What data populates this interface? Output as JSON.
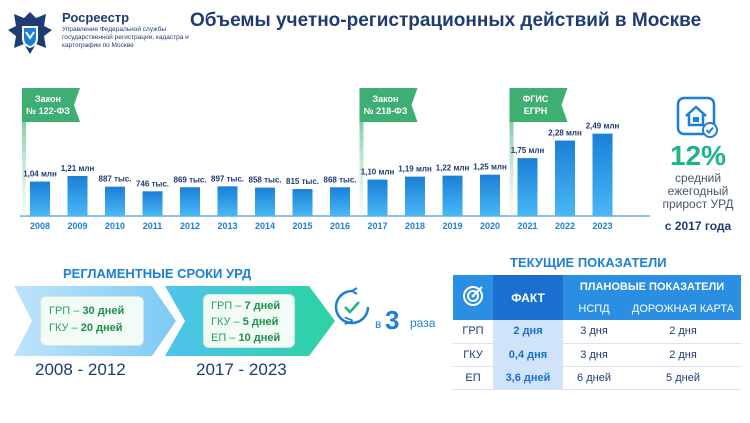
{
  "header": {
    "org_name": "Росреестр",
    "org_sub": "Управление Федеральной службы государственной регистрации, кадастра и картографии по Москве",
    "title": "Объемы учетно-регистрационных действий в Москве"
  },
  "colors": {
    "bar": "#1a7fd6",
    "bar_light": "#49b8f5",
    "flag": "#3fae73",
    "accent_green": "#1fb38a",
    "table_head": "#2a8ee2"
  },
  "chart_data": {
    "type": "bar",
    "categories": [
      "2008",
      "2009",
      "2010",
      "2011",
      "2012",
      "2013",
      "2014",
      "2015",
      "2016",
      "2017",
      "2018",
      "2019",
      "2020",
      "2021",
      "2022",
      "2023"
    ],
    "values": [
      1.04,
      1.21,
      0.887,
      0.746,
      0.869,
      0.897,
      0.858,
      0.815,
      0.868,
      1.1,
      1.19,
      1.22,
      1.25,
      1.75,
      2.28,
      2.49
    ],
    "value_labels": [
      "1,04 млн",
      "1,21 млн",
      "887 тыс.",
      "746 тыс.",
      "869 тыс.",
      "897 тыс.",
      "858 тыс.",
      "815 тыс.",
      "868 тыс.",
      "1,10 млн",
      "1,19 млн",
      "1,22 млн",
      "1,25 млн",
      "1,75 млн",
      "2,28 млн",
      "2,49 млн"
    ],
    "ylim": [
      0,
      2.6
    ],
    "annotations": [
      {
        "at": "2008",
        "line1": "Закон",
        "line2": "№ 122-ФЗ"
      },
      {
        "at": "2017",
        "line1": "Закон",
        "line2": "№ 218-ФЗ"
      },
      {
        "at": "2021",
        "line1": "ФГИС",
        "line2": "ЕГРН"
      }
    ]
  },
  "growth": {
    "icon": "house-check-icon",
    "percent": "12%",
    "text": "средний ежегодный прирост УРД",
    "bold": "с 2017 года"
  },
  "deadlines": {
    "title": "РЕГЛАМЕНТНЫЕ СРОКИ УРД",
    "period1": {
      "label": "2008 - 2012",
      "lines": [
        {
          "name": "ГРП",
          "value": "30 дней"
        },
        {
          "name": "ГКУ",
          "value": "20 дней"
        }
      ]
    },
    "period2": {
      "label": "2017 - 2023",
      "lines": [
        {
          "name": "ГРП",
          "value": "7 дней"
        },
        {
          "name": "ГКУ",
          "value": "5 дней"
        },
        {
          "name": "ЕП",
          "value": "10 дней"
        }
      ]
    },
    "reduction": {
      "gt": ">",
      "prefix": "в",
      "number": "3",
      "word": "раза"
    }
  },
  "indicators": {
    "title": "ТЕКУЩИЕ ПОКАЗАТЕЛИ",
    "fact_header": "ФАКТ",
    "plan_header": "ПЛАНОВЫЕ ПОКАЗАТЕЛИ",
    "sub_headers": [
      "НСПД",
      "ДОРОЖНАЯ КАРТА"
    ],
    "rows": [
      {
        "name": "ГРП",
        "fact": "2 дня",
        "nspd": "3 дня",
        "roadmap": "2 дня"
      },
      {
        "name": "ГКУ",
        "fact": "0,4 дня",
        "nspd": "3 дня",
        "roadmap": "2 дня"
      },
      {
        "name": "ЕП",
        "fact": "3,6 дней",
        "nspd": "6 дней",
        "roadmap": "5 дней"
      }
    ]
  }
}
